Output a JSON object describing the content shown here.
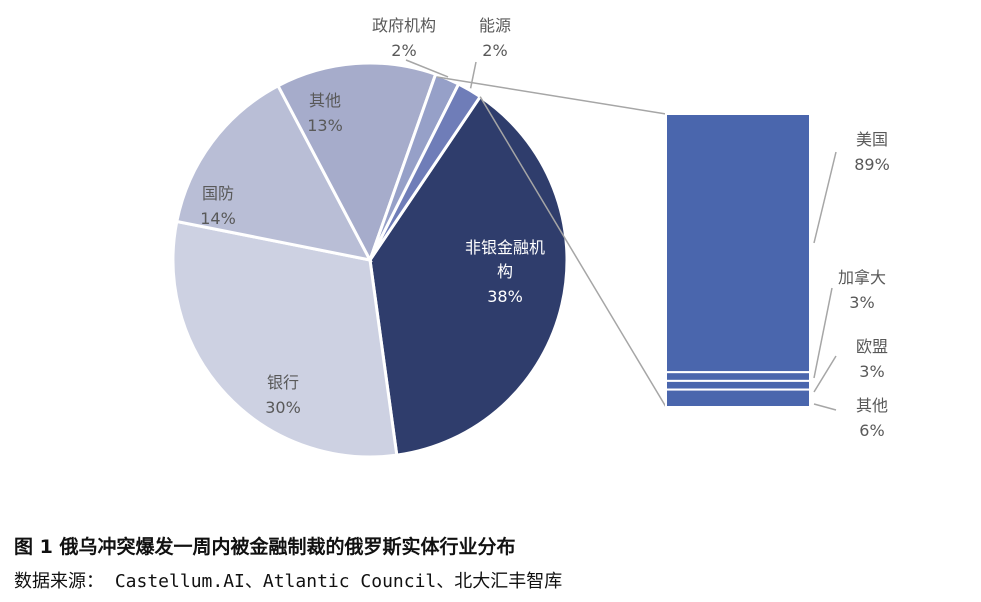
{
  "chart_data": [
    {
      "type": "pie",
      "slices": [
        {
          "label": "非银金融机构",
          "value": 38,
          "value_label": "38%",
          "color": "#2f3d6c"
        },
        {
          "label": "银行",
          "value": 30,
          "value_label": "30%",
          "color": "#cdd1e2"
        },
        {
          "label": "国防",
          "value": 14,
          "value_label": "14%",
          "color": "#b9bed6"
        },
        {
          "label": "其他",
          "value": 13,
          "value_label": "13%",
          "color": "#a6accb"
        },
        {
          "label": "政府机构",
          "value": 2,
          "value_label": "2%",
          "color": "#96a0c8"
        },
        {
          "label": "能源",
          "value": 2,
          "value_label": "2%",
          "color": "#6f7db8"
        }
      ]
    },
    {
      "type": "bar",
      "stacked": true,
      "breakdown_of": "非银金融机构",
      "segments": [
        {
          "label": "美国",
          "value": 89,
          "value_label": "89%",
          "color": "#4a66ad"
        },
        {
          "label": "加拿大",
          "value": 3,
          "value_label": "3%",
          "color": "#4a66ad"
        },
        {
          "label": "欧盟",
          "value": 3,
          "value_label": "3%",
          "color": "#4a66ad"
        },
        {
          "label": "其他",
          "value": 6,
          "value_label": "6%",
          "color": "#4a66ad"
        }
      ]
    }
  ],
  "caption": "图 1 俄乌冲突爆发一周内被金融制裁的俄罗斯实体行业分布",
  "source": "数据来源： Castellum.AI、Atlantic Council、北大汇丰智库"
}
